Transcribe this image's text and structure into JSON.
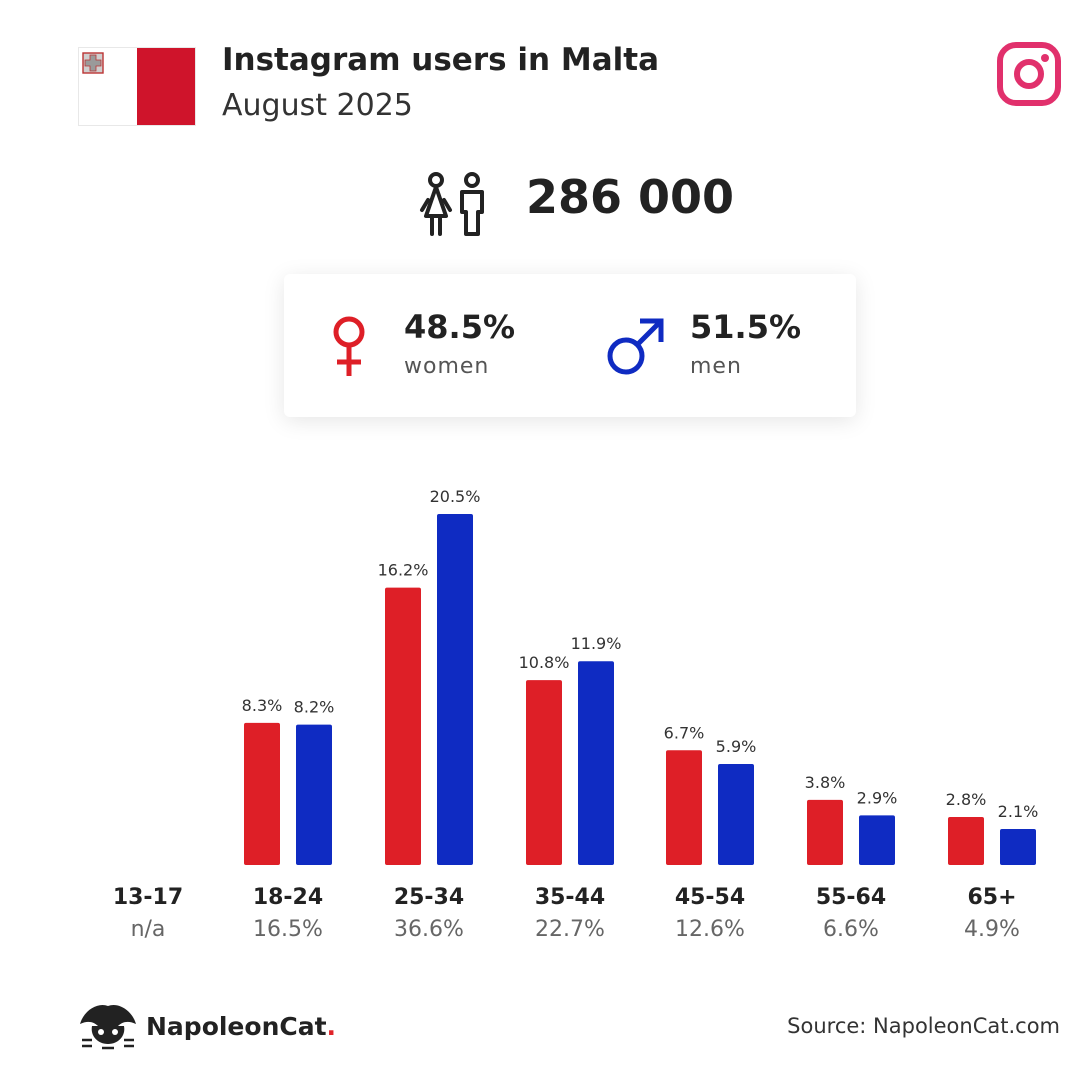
{
  "header": {
    "title": "Instagram users in Malta",
    "subtitle": "August 2025"
  },
  "total": {
    "value": "286 000",
    "icon": "users-icon"
  },
  "gender": {
    "women_pct": "48.5%",
    "women_label": "women",
    "men_pct": "51.5%",
    "men_label": "men"
  },
  "colors": {
    "women": "#de1f27",
    "men": "#0f2bc2",
    "instagram": "#e1306c",
    "flag_red": "#cf142b"
  },
  "chart_data": {
    "type": "bar",
    "categories": [
      "13-17",
      "18-24",
      "25-34",
      "35-44",
      "45-54",
      "55-64",
      "65+"
    ],
    "category_shares": [
      "n/a",
      "16.5%",
      "36.6%",
      "22.7%",
      "12.6%",
      "6.6%",
      "4.9%"
    ],
    "series": [
      {
        "name": "women",
        "values": [
          null,
          8.3,
          16.2,
          10.8,
          6.7,
          3.8,
          2.8
        ],
        "labels": [
          "",
          "8.3%",
          "16.2%",
          "10.8%",
          "6.7%",
          "3.8%",
          "2.8%"
        ]
      },
      {
        "name": "men",
        "values": [
          null,
          8.2,
          20.5,
          11.9,
          5.9,
          2.9,
          2.1
        ],
        "labels": [
          "",
          "8.2%",
          "20.5%",
          "11.9%",
          "5.9%",
          "2.9%",
          "2.1%"
        ]
      }
    ],
    "ylim": [
      0,
      20.5
    ],
    "grid": false
  },
  "footer": {
    "brand": "NapoleonCat",
    "brand_dot": ".",
    "source": "Source: NapoleonCat.com"
  }
}
